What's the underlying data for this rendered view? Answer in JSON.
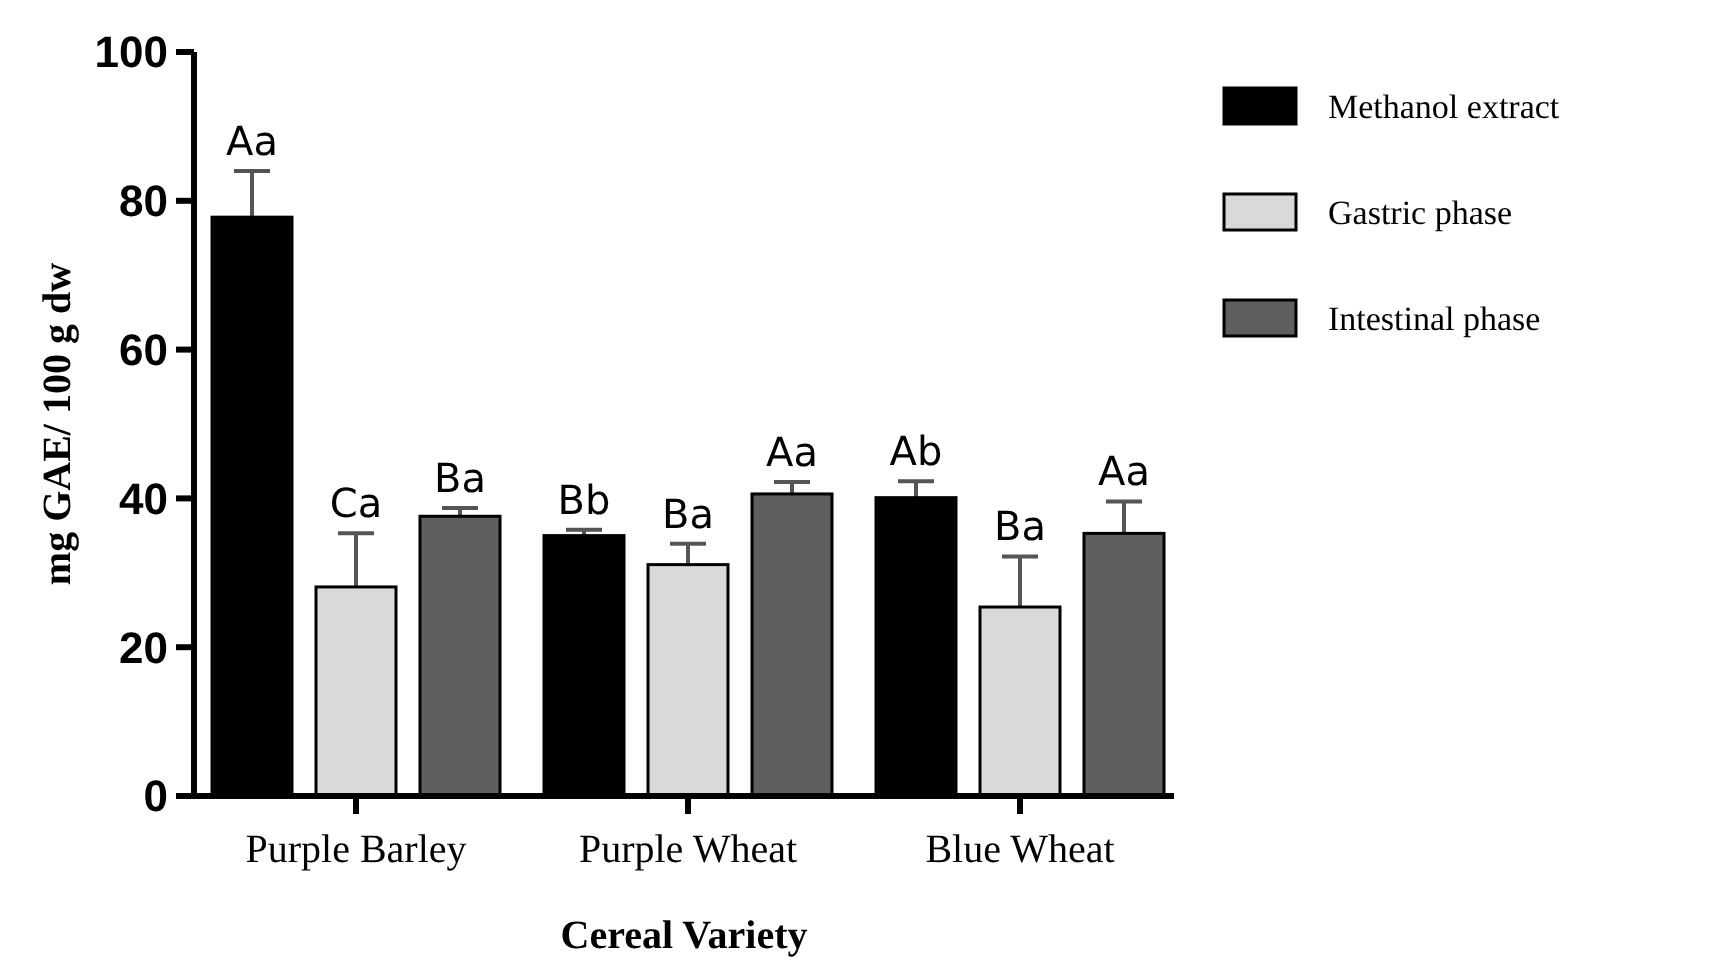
{
  "chart_data": {
    "type": "bar",
    "xlabel": "Cereal Variety",
    "ylabel": "mg GAE/ 100 g dw",
    "categories": [
      "Purple Barley",
      "Purple Wheat",
      "Blue Wheat"
    ],
    "series": [
      {
        "name": "Methanol extract",
        "color": "#000000",
        "values": [
          77.8,
          35.0,
          40.1
        ],
        "errors": [
          6.2,
          0.8,
          2.2
        ],
        "value_labels": [
          "Aa",
          "Bb",
          "Ab"
        ]
      },
      {
        "name": "Gastric phase",
        "color": "#d9d9d9",
        "values": [
          28.1,
          31.1,
          25.4
        ],
        "errors": [
          7.2,
          2.8,
          6.8
        ],
        "value_labels": [
          "Ca",
          "Ba",
          "Ba"
        ]
      },
      {
        "name": "Intestinal phase",
        "color": "#5f5f5f",
        "values": [
          37.6,
          40.6,
          35.3
        ],
        "errors": [
          1.1,
          1.6,
          4.3
        ],
        "value_labels": [
          "Ba",
          "Aa",
          "Aa"
        ]
      }
    ],
    "ylim": [
      0,
      100
    ],
    "yticks": [
      0,
      20,
      40,
      60,
      80,
      100
    ],
    "grid": false,
    "legend": "right"
  }
}
